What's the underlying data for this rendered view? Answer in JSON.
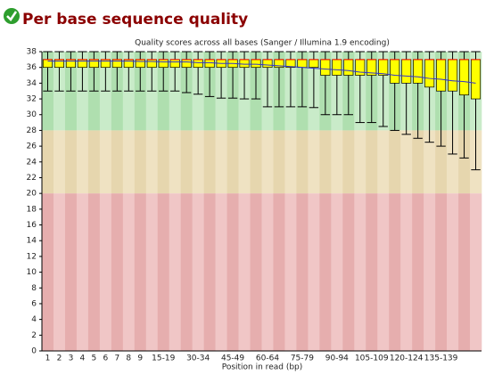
{
  "header": {
    "title": "Per base sequence quality"
  },
  "chart_data": {
    "type": "box",
    "title": "Quality scores across all bases (Sanger / Illumina 1.9 encoding)",
    "x_label": "Position in read (bp)",
    "categories": [
      "1",
      "2",
      "3",
      "4",
      "5",
      "6",
      "7",
      "8",
      "9",
      null,
      "15-19",
      null,
      null,
      "30-34",
      null,
      null,
      "45-49",
      null,
      null,
      "60-64",
      null,
      null,
      "75-79",
      null,
      null,
      "90-94",
      null,
      null,
      "105-109",
      null,
      null,
      "120-124",
      null,
      null,
      "135-139",
      null,
      null,
      null
    ],
    "lower_whisker": [
      33,
      33,
      33,
      33,
      33,
      33,
      33,
      33,
      33,
      33,
      33,
      33,
      32.8,
      32.6,
      32.3,
      32.1,
      32.1,
      32,
      32,
      31,
      31,
      31,
      31,
      30.9,
      30,
      30,
      30,
      29,
      29,
      28.5,
      28,
      27.5,
      27,
      26.5,
      26,
      25,
      24.5,
      23
    ],
    "q1": [
      36,
      36,
      36,
      36,
      36,
      36,
      36,
      36,
      36,
      36,
      36,
      36,
      36,
      36,
      36,
      36,
      36,
      36,
      36,
      36,
      36,
      36,
      36,
      36,
      35,
      35,
      35,
      35,
      35,
      35,
      34,
      34,
      34,
      33.5,
      33,
      33,
      32.5,
      32
    ],
    "median": [
      37,
      37,
      37,
      37,
      37,
      37,
      37,
      37,
      37,
      37,
      37,
      37,
      37,
      37,
      37,
      37,
      37,
      37,
      37,
      37,
      37,
      37,
      37,
      37,
      37,
      37,
      37,
      37,
      37,
      37,
      37,
      37,
      37,
      37,
      37,
      37,
      37,
      37
    ],
    "q3": [
      37,
      37,
      37,
      37,
      37,
      37,
      37,
      37,
      37,
      37,
      37,
      37,
      37,
      37,
      37,
      37,
      37,
      37,
      37,
      37,
      37,
      37,
      37,
      37,
      37,
      37,
      37,
      37,
      37,
      37,
      37,
      37,
      37,
      37,
      37,
      37,
      37,
      37
    ],
    "upper_whisker": [
      38,
      38,
      38,
      38,
      38,
      38,
      38,
      38,
      38,
      38,
      38,
      38,
      38,
      38,
      38,
      38,
      38,
      38,
      38,
      38,
      38,
      38,
      38,
      38,
      38,
      38,
      38,
      38,
      38,
      38,
      38,
      38,
      38,
      38,
      38,
      38,
      38,
      38
    ],
    "mean": [
      36.8,
      36.8,
      36.8,
      36.8,
      36.8,
      36.8,
      36.8,
      36.8,
      36.75,
      36.75,
      36.7,
      36.7,
      36.7,
      36.6,
      36.6,
      36.5,
      36.5,
      36.4,
      36.4,
      36.3,
      36.2,
      36.1,
      36,
      35.9,
      35.8,
      35.7,
      35.6,
      35.4,
      35.3,
      35.2,
      35,
      34.9,
      34.8,
      34.6,
      34.5,
      34.3,
      34.2,
      34
    ],
    "box_color": "#ffff00",
    "median_color": "#ff0000",
    "mean_color": "#3333cc",
    "zones": [
      {
        "from": 28,
        "to": 38,
        "colors": [
          "#afdfaf",
          "#c9ebc9"
        ]
      },
      {
        "from": 20,
        "to": 28,
        "colors": [
          "#e6d6ae",
          "#efe2c2"
        ]
      },
      {
        "from": 0,
        "to": 20,
        "colors": [
          "#e6aeae",
          "#f0c6c6"
        ]
      }
    ],
    "ylim": [
      0,
      38
    ],
    "yticks": [
      0,
      2,
      4,
      6,
      8,
      10,
      12,
      14,
      16,
      18,
      20,
      22,
      24,
      26,
      28,
      30,
      32,
      34,
      36,
      38
    ]
  }
}
